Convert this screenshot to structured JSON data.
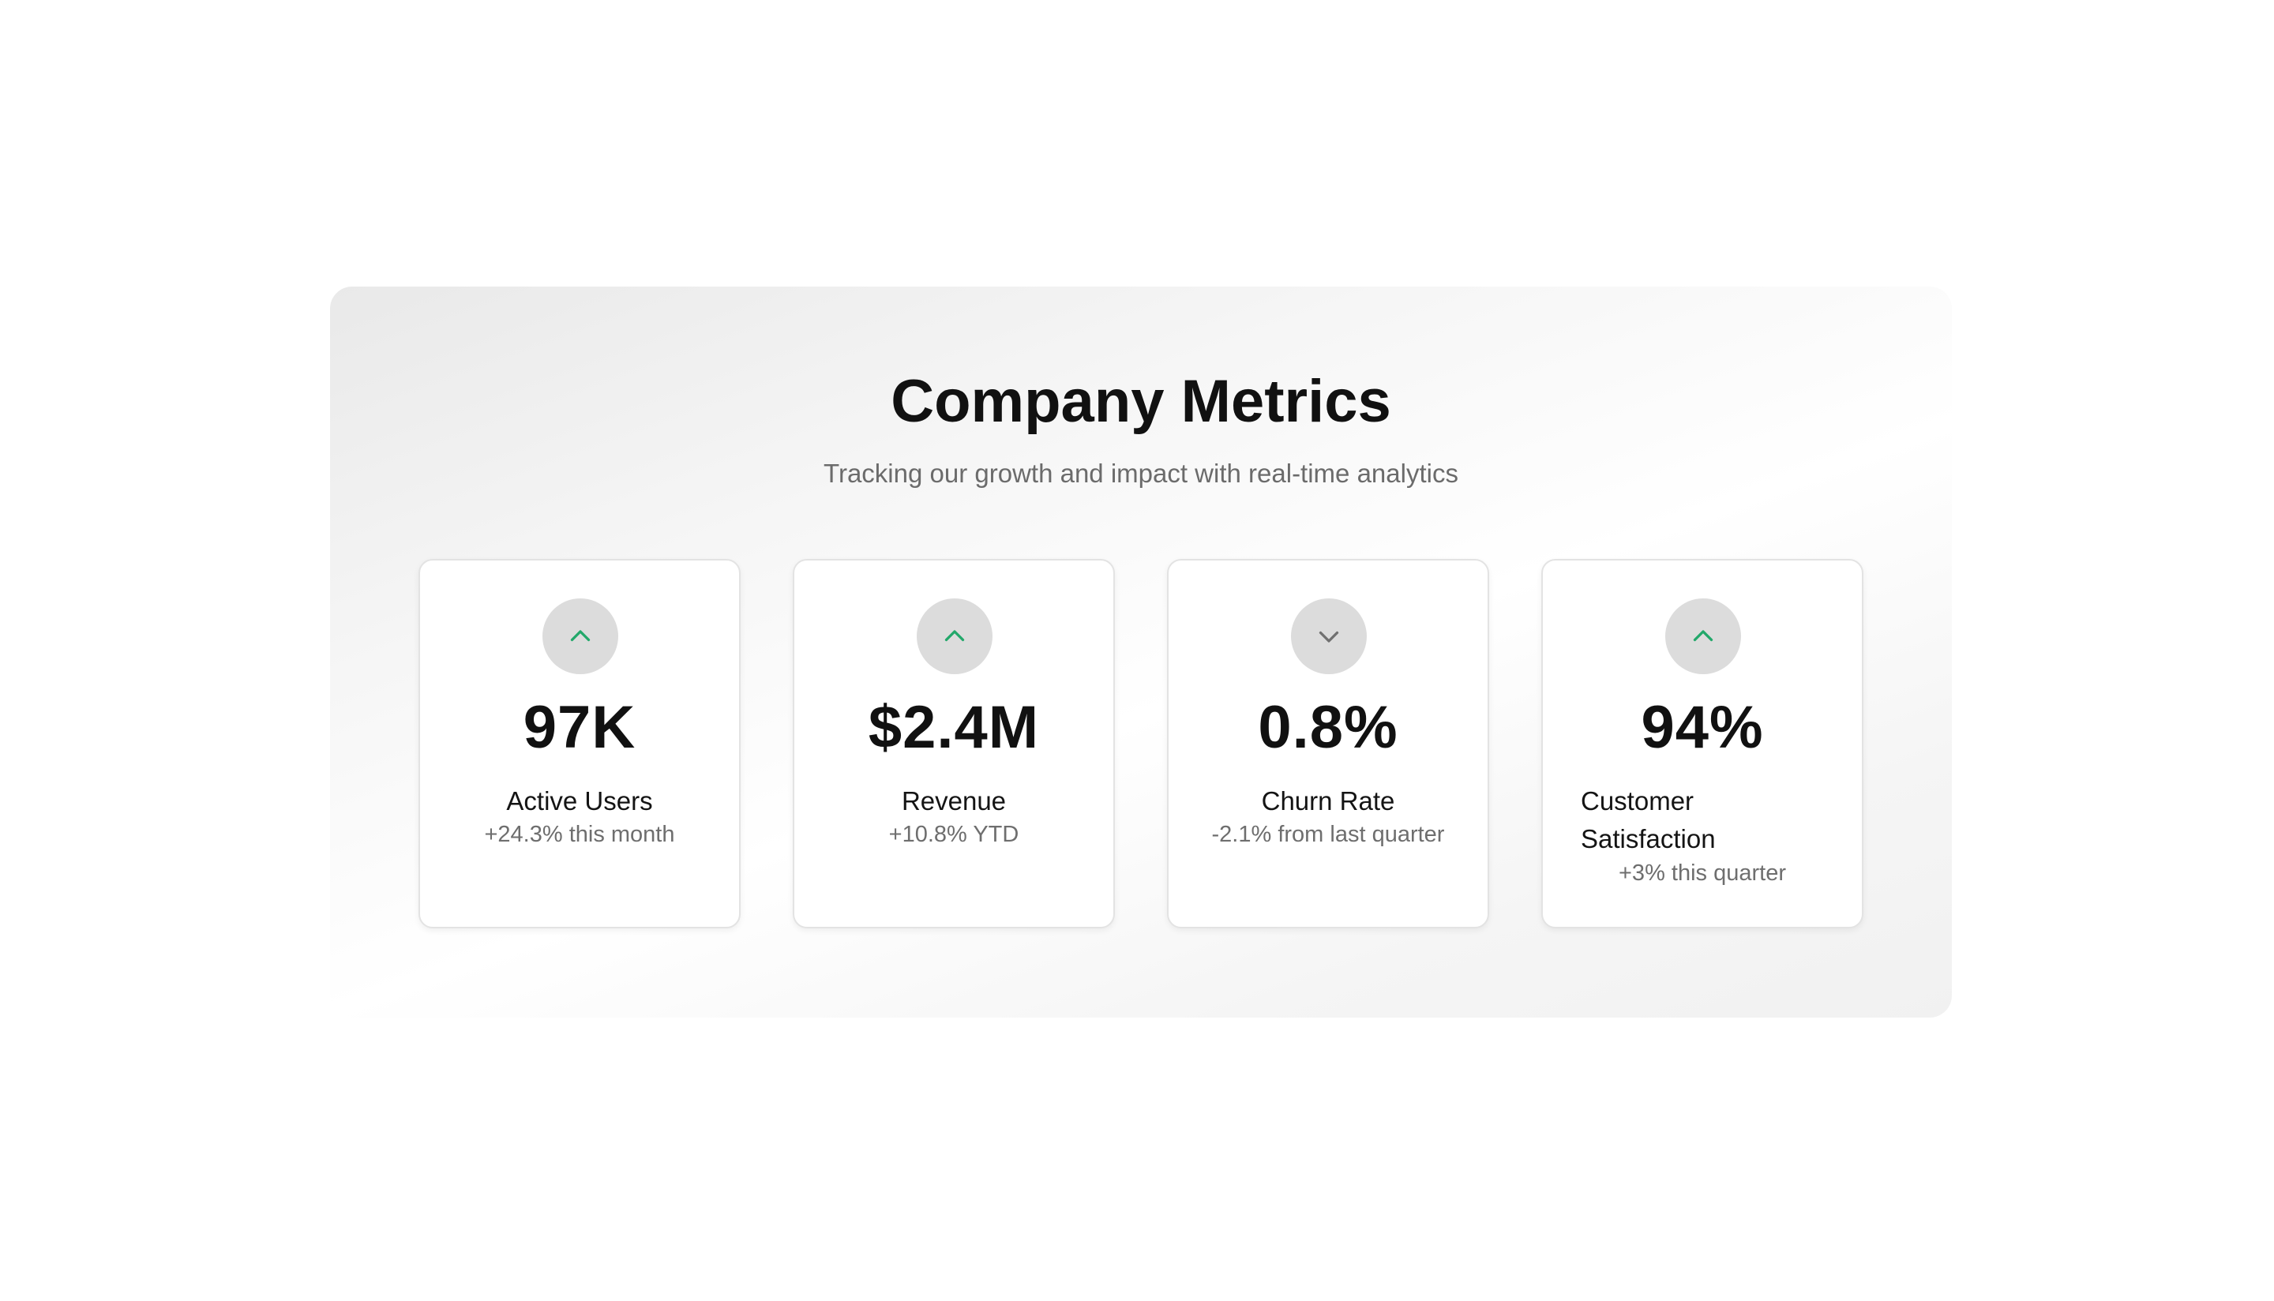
{
  "header": {
    "title": "Company Metrics",
    "subtitle": "Tracking our growth and impact with real-time analytics"
  },
  "colors": {
    "up": "#22a86a",
    "down": "#707070"
  },
  "metrics": [
    {
      "value": "97K",
      "label": "Active Users",
      "change": "+24.3% this month",
      "trend": "up",
      "icon": "chevron-up-icon"
    },
    {
      "value": "$2.4M",
      "label": "Revenue",
      "change": "+10.8% YTD",
      "trend": "up",
      "icon": "chevron-up-icon"
    },
    {
      "value": "0.8%",
      "label": "Churn Rate",
      "change": "-2.1% from last quarter",
      "trend": "down",
      "icon": "chevron-down-icon"
    },
    {
      "value": "94%",
      "label": "Customer Satisfaction",
      "change": "+3% this quarter",
      "trend": "up",
      "icon": "chevron-up-icon"
    }
  ]
}
